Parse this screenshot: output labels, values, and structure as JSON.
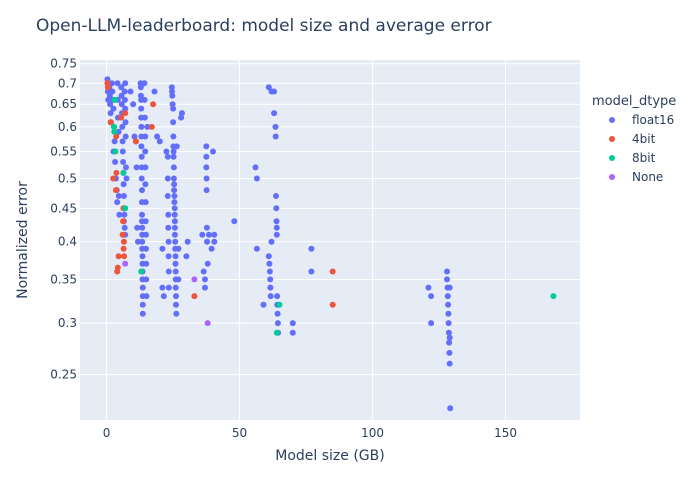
{
  "chart_data": {
    "type": "scatter",
    "title": "Open-LLM-leaderboard: model size and average error",
    "xlabel": "Model size (GB)",
    "ylabel": "Normalized error",
    "xlim": [
      -10,
      178
    ],
    "ylim": [
      0.213,
      0.76
    ],
    "y_scale": "log",
    "x_ticks": [
      0,
      50,
      100,
      150
    ],
    "y_ticks": [
      0.25,
      0.3,
      0.35,
      0.4,
      0.45,
      0.5,
      0.55,
      0.6,
      0.65,
      0.7,
      0.75
    ],
    "grid": true,
    "legend_title": "model_dtype",
    "legend_position": "right",
    "series": [
      {
        "name": "float16",
        "color": "#636efa",
        "points": [
          [
            0.3,
            0.71
          ],
          [
            0.5,
            0.7
          ],
          [
            0.5,
            0.68
          ],
          [
            0.6,
            0.66
          ],
          [
            1,
            0.69
          ],
          [
            1.2,
            0.67
          ],
          [
            1.3,
            0.65
          ],
          [
            1.5,
            0.63
          ],
          [
            1.6,
            0.61
          ],
          [
            2,
            0.7
          ],
          [
            2.2,
            0.68
          ],
          [
            2.4,
            0.66
          ],
          [
            2.6,
            0.64
          ],
          [
            2.8,
            0.6
          ],
          [
            3,
            0.57
          ],
          [
            2.6,
            0.55
          ],
          [
            3.2,
            0.53
          ],
          [
            3.5,
            0.5
          ],
          [
            3.8,
            0.48
          ],
          [
            4,
            0.46
          ],
          [
            4.1,
            0.7
          ],
          [
            4.2,
            0.66
          ],
          [
            4.3,
            0.62
          ],
          [
            4.5,
            0.59
          ],
          [
            4.6,
            0.47
          ],
          [
            4.8,
            0.44
          ],
          [
            5.5,
            0.69
          ],
          [
            5.6,
            0.67
          ],
          [
            5.7,
            0.65
          ],
          [
            5.8,
            0.63
          ],
          [
            5.9,
            0.6
          ],
          [
            6,
            0.57
          ],
          [
            6.1,
            0.55
          ],
          [
            6.2,
            0.53
          ],
          [
            6.3,
            0.51
          ],
          [
            6.4,
            0.49
          ],
          [
            6.5,
            0.47
          ],
          [
            6.6,
            0.45
          ],
          [
            6.7,
            0.44
          ],
          [
            6.8,
            0.68
          ],
          [
            6.9,
            0.66
          ],
          [
            7,
            0.7
          ],
          [
            7,
            0.64
          ],
          [
            7.1,
            0.61
          ],
          [
            7.2,
            0.58
          ],
          [
            7.3,
            0.52
          ],
          [
            7.5,
            0.5
          ],
          [
            6.5,
            0.43
          ],
          [
            6.8,
            0.42
          ],
          [
            7,
            0.41
          ],
          [
            9,
            0.68
          ],
          [
            10,
            0.65
          ],
          [
            10.5,
            0.58
          ],
          [
            11,
            0.57
          ],
          [
            11.3,
            0.52
          ],
          [
            11.5,
            0.42
          ],
          [
            11.8,
            0.4
          ],
          [
            12.8,
            0.7
          ],
          [
            12.9,
            0.69
          ],
          [
            12.9,
            0.67
          ],
          [
            13,
            0.66
          ],
          [
            13,
            0.64
          ],
          [
            13,
            0.62
          ],
          [
            13.1,
            0.6
          ],
          [
            13.1,
            0.58
          ],
          [
            13.1,
            0.56
          ],
          [
            13.2,
            0.54
          ],
          [
            13.2,
            0.52
          ],
          [
            13.2,
            0.5
          ],
          [
            13.3,
            0.48
          ],
          [
            13.3,
            0.46
          ],
          [
            13.3,
            0.44
          ],
          [
            13.3,
            0.43
          ],
          [
            13.4,
            0.42
          ],
          [
            13.4,
            0.41
          ],
          [
            13.4,
            0.4
          ],
          [
            13.4,
            0.39
          ],
          [
            13.5,
            0.38
          ],
          [
            13.5,
            0.37
          ],
          [
            13.5,
            0.36
          ],
          [
            13.5,
            0.35
          ],
          [
            13.6,
            0.34
          ],
          [
            13.6,
            0.33
          ],
          [
            13.6,
            0.32
          ],
          [
            13.6,
            0.31
          ],
          [
            14.2,
            0.7
          ],
          [
            14.3,
            0.66
          ],
          [
            14.4,
            0.62
          ],
          [
            14.5,
            0.58
          ],
          [
            14.5,
            0.55
          ],
          [
            14.6,
            0.52
          ],
          [
            14.6,
            0.49
          ],
          [
            14.7,
            0.46
          ],
          [
            14.7,
            0.43
          ],
          [
            14.8,
            0.41
          ],
          [
            14.8,
            0.39
          ],
          [
            14.9,
            0.37
          ],
          [
            14.9,
            0.35
          ],
          [
            15,
            0.33
          ],
          [
            15.3,
            0.6
          ],
          [
            18,
            0.68
          ],
          [
            19,
            0.58
          ],
          [
            20,
            0.57
          ],
          [
            21,
            0.39
          ],
          [
            21,
            0.34
          ],
          [
            21.5,
            0.33
          ],
          [
            22.5,
            0.55
          ],
          [
            23,
            0.54
          ],
          [
            23,
            0.5
          ],
          [
            23,
            0.47
          ],
          [
            23.2,
            0.44
          ],
          [
            23.2,
            0.42
          ],
          [
            23.3,
            0.4
          ],
          [
            23.3,
            0.38
          ],
          [
            23.4,
            0.36
          ],
          [
            23.4,
            0.34
          ],
          [
            24.5,
            0.69
          ],
          [
            24.6,
            0.68
          ],
          [
            24.7,
            0.67
          ],
          [
            24.8,
            0.65
          ],
          [
            25,
            0.64
          ],
          [
            25,
            0.61
          ],
          [
            25.1,
            0.58
          ],
          [
            25.1,
            0.56
          ],
          [
            25.2,
            0.55
          ],
          [
            25.2,
            0.54
          ],
          [
            25.3,
            0.52
          ],
          [
            25.3,
            0.5
          ],
          [
            25.4,
            0.49
          ],
          [
            25.4,
            0.48
          ],
          [
            25.5,
            0.47
          ],
          [
            25.5,
            0.46
          ],
          [
            25.6,
            0.45
          ],
          [
            25.6,
            0.44
          ],
          [
            25.7,
            0.43
          ],
          [
            25.7,
            0.42
          ],
          [
            25.7,
            0.41
          ],
          [
            25.8,
            0.4
          ],
          [
            25.8,
            0.39
          ],
          [
            25.9,
            0.38
          ],
          [
            25.9,
            0.37
          ],
          [
            26,
            0.36
          ],
          [
            26,
            0.35
          ],
          [
            26,
            0.34
          ],
          [
            26.1,
            0.33
          ],
          [
            26.1,
            0.32
          ],
          [
            26.2,
            0.31
          ],
          [
            26.4,
            0.56
          ],
          [
            27,
            0.39
          ],
          [
            27,
            0.35
          ],
          [
            28,
            0.62
          ],
          [
            28.3,
            0.63
          ],
          [
            30,
            0.38
          ],
          [
            30.5,
            0.4
          ],
          [
            36,
            0.41
          ],
          [
            36.5,
            0.36
          ],
          [
            37,
            0.35
          ],
          [
            37,
            0.34
          ],
          [
            37.5,
            0.56
          ],
          [
            37.5,
            0.54
          ],
          [
            37.5,
            0.52
          ],
          [
            37.6,
            0.5
          ],
          [
            37.6,
            0.48
          ],
          [
            37.7,
            0.42
          ],
          [
            37.8,
            0.4
          ],
          [
            38,
            0.37
          ],
          [
            38.5,
            0.41
          ],
          [
            39.5,
            0.39
          ],
          [
            40,
            0.55
          ],
          [
            40.5,
            0.41
          ],
          [
            40.5,
            0.4
          ],
          [
            48,
            0.43
          ],
          [
            56,
            0.52
          ],
          [
            56.5,
            0.5
          ],
          [
            56.5,
            0.39
          ],
          [
            59,
            0.32
          ],
          [
            61,
            0.69
          ],
          [
            61,
            0.38
          ],
          [
            61.2,
            0.37
          ],
          [
            61.4,
            0.36
          ],
          [
            61.5,
            0.35
          ],
          [
            61.6,
            0.34
          ],
          [
            61.7,
            0.33
          ],
          [
            62,
            0.68
          ],
          [
            62,
            0.4
          ],
          [
            63,
            0.68
          ],
          [
            63,
            0.63
          ],
          [
            63.5,
            0.6
          ],
          [
            63.6,
            0.58
          ],
          [
            63.7,
            0.47
          ],
          [
            63.8,
            0.45
          ],
          [
            63.9,
            0.43
          ],
          [
            64,
            0.42
          ],
          [
            64,
            0.41
          ],
          [
            64.1,
            0.33
          ],
          [
            64.2,
            0.32
          ],
          [
            64.3,
            0.31
          ],
          [
            64.4,
            0.3
          ],
          [
            64.5,
            0.29
          ],
          [
            70,
            0.3
          ],
          [
            70,
            0.29
          ],
          [
            77,
            0.39
          ],
          [
            77,
            0.36
          ],
          [
            121,
            0.34
          ],
          [
            122,
            0.33
          ],
          [
            122,
            0.3
          ],
          [
            128,
            0.36
          ],
          [
            128,
            0.35
          ],
          [
            128.2,
            0.34
          ],
          [
            128.3,
            0.33
          ],
          [
            128.4,
            0.32
          ],
          [
            128.5,
            0.31
          ],
          [
            128.6,
            0.3
          ],
          [
            128.7,
            0.29
          ],
          [
            128.8,
            0.28
          ],
          [
            128.9,
            0.27
          ],
          [
            129,
            0.26
          ],
          [
            129,
            0.34
          ],
          [
            129,
            0.285
          ],
          [
            129.2,
            0.222
          ]
        ]
      },
      {
        "name": "4bit",
        "color": "#EF553B",
        "points": [
          [
            0.3,
            0.7
          ],
          [
            0.5,
            0.69
          ],
          [
            1.5,
            0.61
          ],
          [
            2.5,
            0.5
          ],
          [
            3.5,
            0.48
          ],
          [
            3.6,
            0.58
          ],
          [
            3.7,
            0.51
          ],
          [
            4.0,
            0.36
          ],
          [
            4.2,
            0.365
          ],
          [
            4.5,
            0.38
          ],
          [
            5.5,
            0.62
          ],
          [
            6.0,
            0.41
          ],
          [
            6.2,
            0.43
          ],
          [
            6.3,
            0.45
          ],
          [
            6.4,
            0.39
          ],
          [
            6.5,
            0.4
          ],
          [
            6.6,
            0.38
          ],
          [
            7.0,
            0.63
          ],
          [
            11.0,
            0.57
          ],
          [
            17.0,
            0.6
          ],
          [
            17.5,
            0.65
          ],
          [
            33.0,
            0.33
          ],
          [
            85.0,
            0.36
          ],
          [
            85.0,
            0.32
          ]
        ]
      },
      {
        "name": "8bit",
        "color": "#00cc96",
        "points": [
          [
            2.8,
            0.6
          ],
          [
            2.9,
            0.59
          ],
          [
            3.0,
            0.66
          ],
          [
            3.3,
            0.55
          ],
          [
            6.3,
            0.51
          ],
          [
            7.0,
            0.45
          ],
          [
            13.0,
            0.36
          ],
          [
            64.0,
            0.29
          ],
          [
            65.0,
            0.32
          ],
          [
            168.0,
            0.33
          ]
        ]
      },
      {
        "name": "None",
        "color": "#ab63fa",
        "points": [
          [
            7.0,
            0.37
          ],
          [
            33.0,
            0.35
          ],
          [
            38.0,
            0.3
          ]
        ]
      }
    ]
  }
}
